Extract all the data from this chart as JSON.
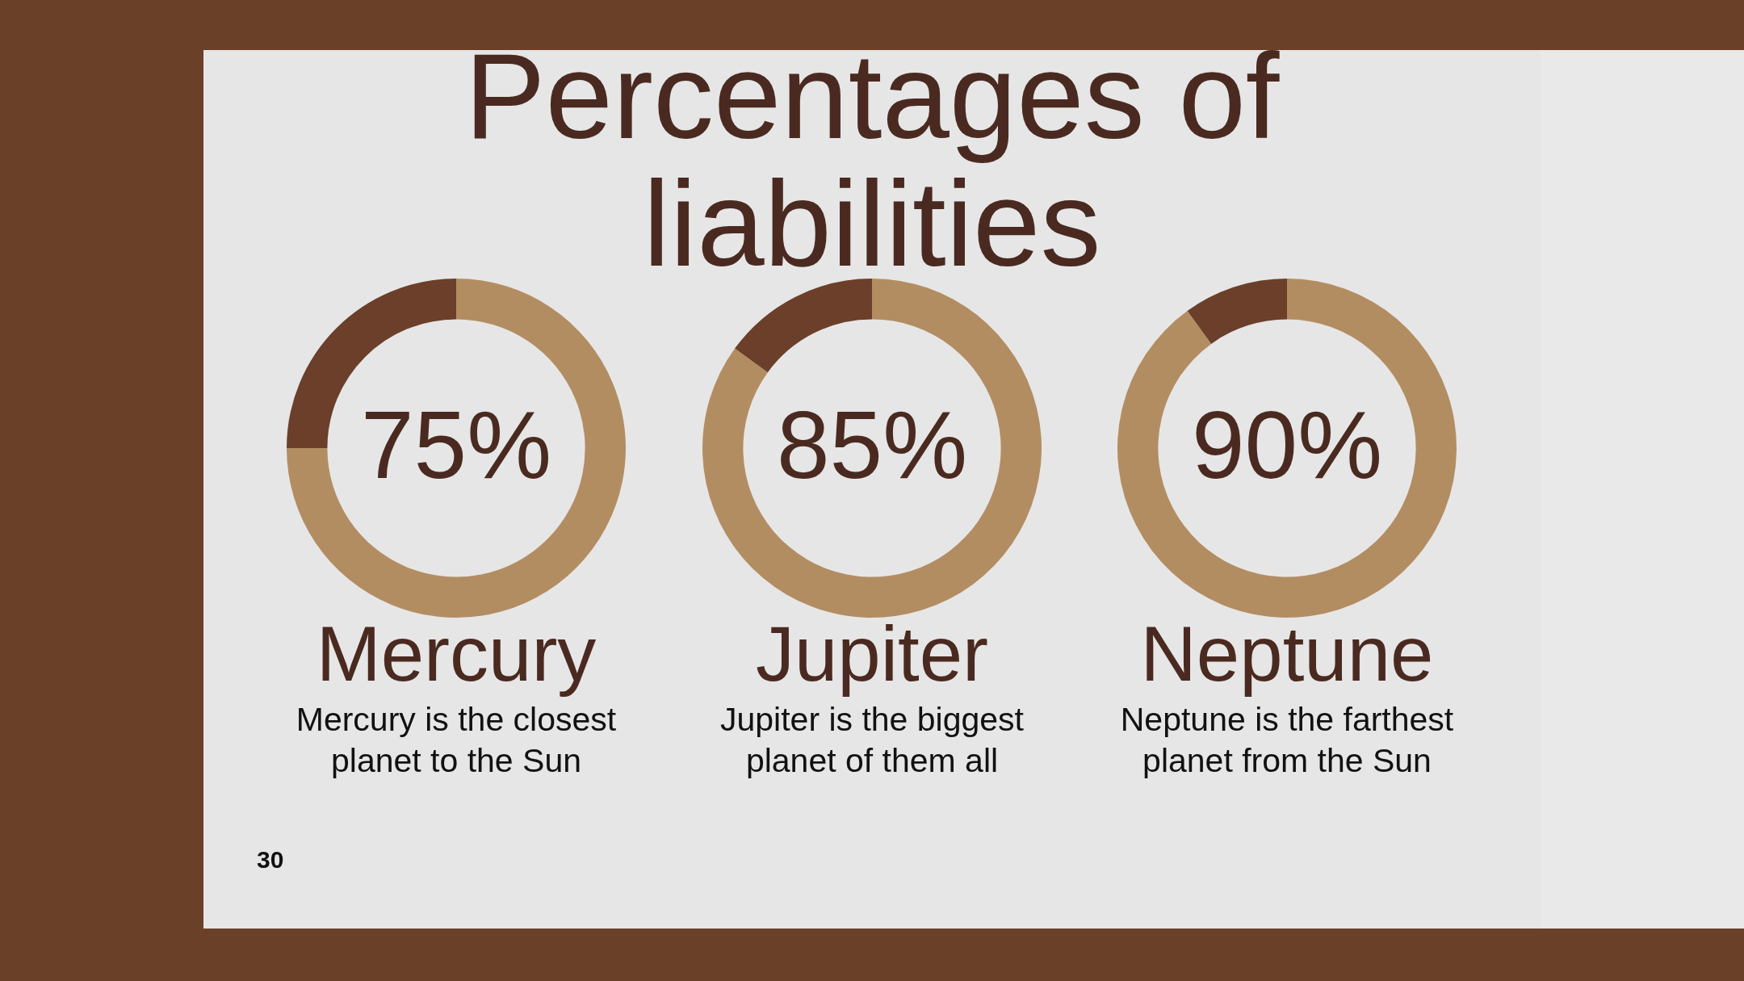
{
  "chart_data": [
    {
      "type": "donut",
      "title": "Percentages of liabilities",
      "subtitle": "Mercury",
      "categories": [
        null,
        null
      ],
      "values": [
        75,
        25
      ],
      "colors": [
        "#b38d62",
        "#6b3f2a"
      ],
      "value_labels": [
        "75%",
        null
      ],
      "legend": false,
      "annotations": [
        "Mercury is the closest planet to the Sun",
        "30"
      ]
    },
    {
      "type": "donut",
      "subtitle": "Jupiter",
      "categories": [
        null,
        null
      ],
      "values": [
        85,
        15
      ],
      "colors": [
        "#b38d62",
        "#6b3f2a"
      ],
      "value_labels": [
        "85%",
        null
      ],
      "legend": false,
      "annotations": [
        "Jupiter is the biggest planet of them all"
      ]
    },
    {
      "type": "donut",
      "subtitle": "Neptune",
      "categories": [
        null,
        null
      ],
      "values": [
        90,
        10
      ],
      "colors": [
        "#b38d62",
        "#6b3f2a"
      ],
      "value_labels": [
        "90%",
        null
      ],
      "legend": false,
      "annotations": [
        "Neptune is the farthest planet from the Sun"
      ]
    }
  ]
}
